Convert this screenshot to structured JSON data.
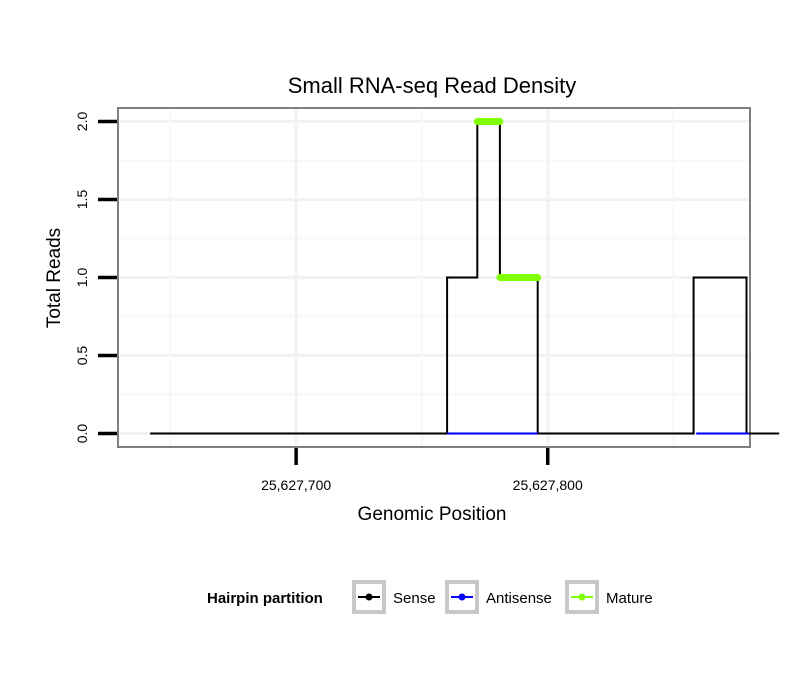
{
  "chart_data": {
    "type": "line",
    "title": "Small RNA-seq Read Density",
    "xlabel": "Genomic Position",
    "ylabel": "Total Reads",
    "xlim": [
      25627630,
      25627880
    ],
    "ylim": [
      -0.08,
      2.08
    ],
    "x_ticks": [
      25627700,
      25627800
    ],
    "x_tick_labels": [
      "25,627,700",
      "25,627,800"
    ],
    "y_ticks": [
      0,
      0.5,
      1,
      1.5,
      2
    ],
    "y_tick_labels": [
      "0.0",
      "0.5",
      "1.0",
      "1.5",
      "2.0"
    ],
    "grid": true,
    "legend": {
      "title": "Hairpin partition",
      "position": "bottom",
      "entries": [
        "Sense",
        "Antisense",
        "Mature"
      ]
    },
    "series": [
      {
        "name": "Sense",
        "color": "#000000",
        "x": [
          25627642,
          25627760,
          25627760,
          25627772,
          25627772,
          25627781,
          25627781,
          25627796,
          25627796,
          25627858,
          25627858,
          25627879,
          25627879,
          25627892
        ],
        "y": [
          0,
          0,
          1,
          1,
          2,
          2,
          1,
          1,
          0,
          0,
          1,
          1,
          0,
          0
        ]
      },
      {
        "name": "Antisense",
        "color": "#0000ff",
        "x": [
          25627760,
          25627796
        ],
        "y": [
          0,
          0
        ]
      },
      {
        "name": "Antisense",
        "color": "#0000ff",
        "x": [
          25627859,
          25627880
        ],
        "y": [
          0,
          0
        ]
      },
      {
        "name": "Mature",
        "color": "#7fff00",
        "x": [
          25627772,
          25627781
        ],
        "y": [
          2,
          2
        ]
      },
      {
        "name": "Mature",
        "color": "#7fff00",
        "x": [
          25627781,
          25627796
        ],
        "y": [
          1,
          1
        ]
      }
    ]
  }
}
